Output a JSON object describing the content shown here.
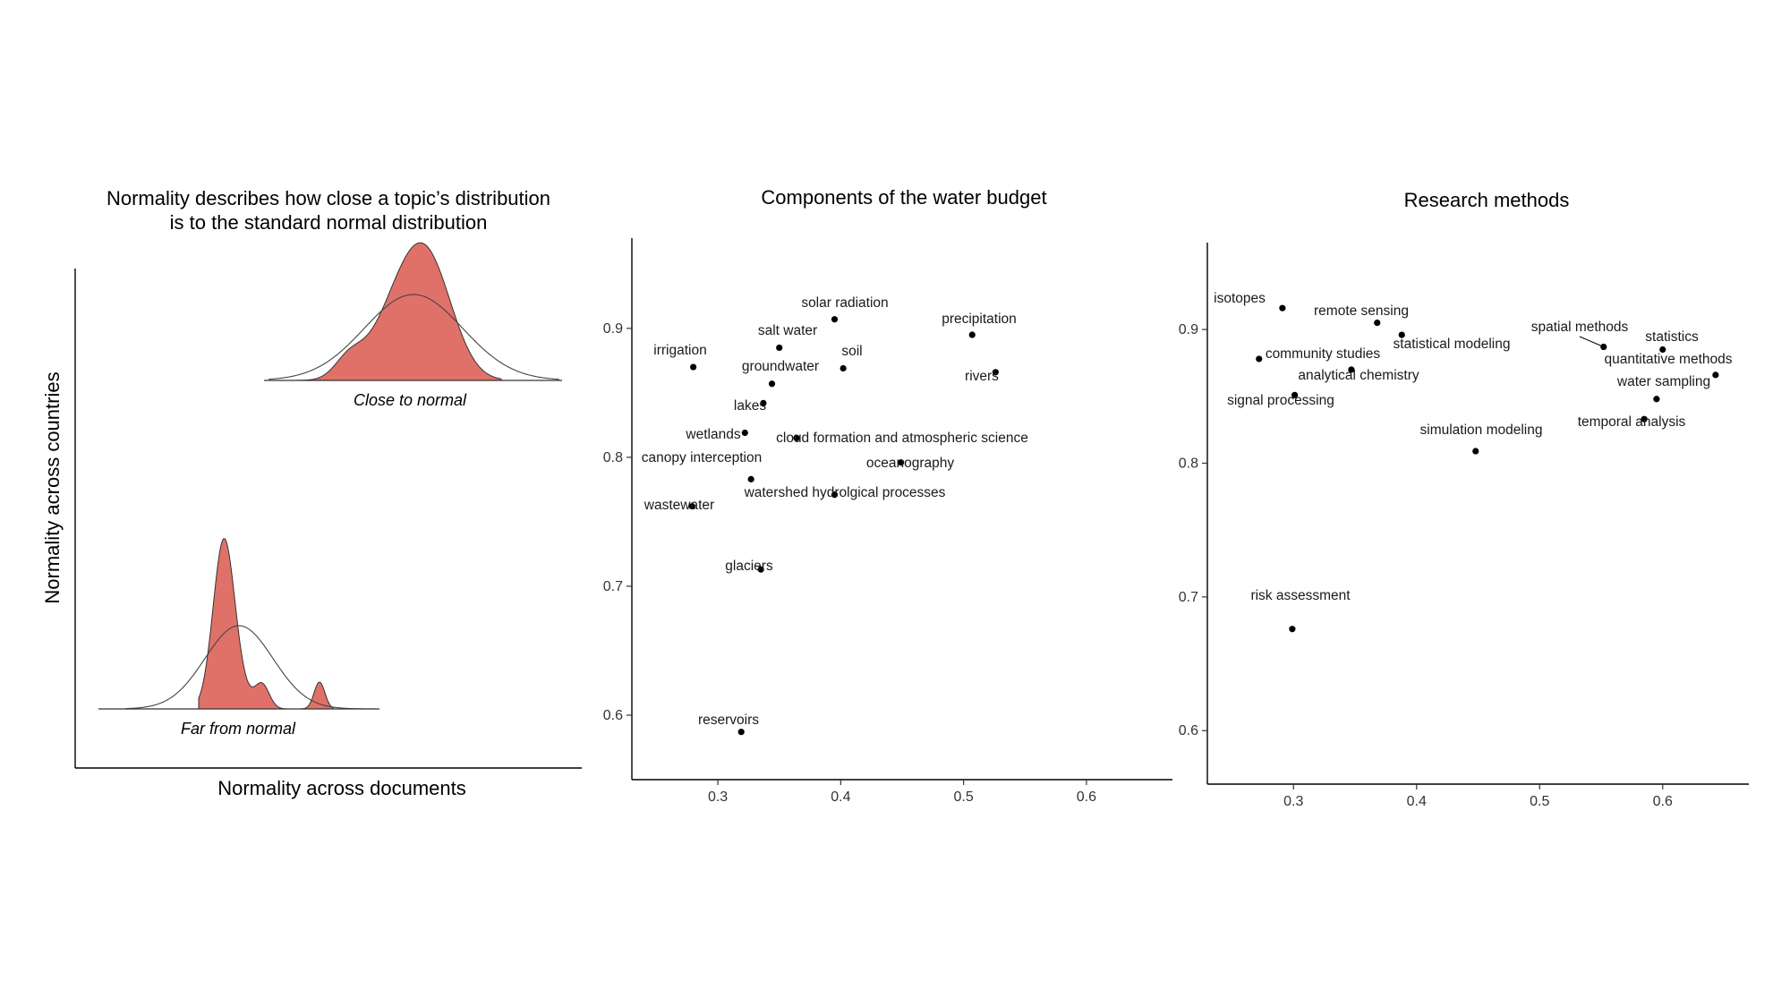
{
  "schematic": {
    "title_line1": "Normality describes how close a topic’s distribution",
    "title_line2": "is to the standard normal distribution",
    "xlabel": "Normality across documents",
    "ylabel": "Normality across countries",
    "close_label": "Close to normal",
    "far_label": "Far from normal",
    "fill_color": "#e07168"
  },
  "chart_data": [
    {
      "type": "scatter",
      "title": "Components of the water budget",
      "xlabel": "",
      "ylabel": "",
      "xlim": [
        0.23,
        0.67
      ],
      "ylim": [
        0.55,
        0.97
      ],
      "xticks": [
        "0.3",
        "0.4",
        "0.5",
        "0.6"
      ],
      "yticks": [
        "0.6",
        "0.7",
        "0.8",
        "0.9"
      ],
      "points": [
        {
          "label": "solar radiation",
          "x": 0.395,
          "y": 0.907
        },
        {
          "label": "precipitation",
          "x": 0.507,
          "y": 0.895
        },
        {
          "label": "salt water",
          "x": 0.35,
          "y": 0.885
        },
        {
          "label": "irrigation",
          "x": 0.28,
          "y": 0.87
        },
        {
          "label": "soil",
          "x": 0.402,
          "y": 0.869
        },
        {
          "label": "rivers",
          "x": 0.526,
          "y": 0.866
        },
        {
          "label": "groundwater",
          "x": 0.344,
          "y": 0.857
        },
        {
          "label": "lakes",
          "x": 0.337,
          "y": 0.842
        },
        {
          "label": "wetlands",
          "x": 0.322,
          "y": 0.819
        },
        {
          "label": "cloud formation and atmospheric science",
          "x": 0.364,
          "y": 0.815
        },
        {
          "label": "oceanography",
          "x": 0.449,
          "y": 0.796
        },
        {
          "label": "canopy interception",
          "x": 0.327,
          "y": 0.783
        },
        {
          "label": "watershed hydrolgical processes",
          "x": 0.395,
          "y": 0.771
        },
        {
          "label": "wastewater",
          "x": 0.279,
          "y": 0.762
        },
        {
          "label": "glaciers",
          "x": 0.335,
          "y": 0.713
        },
        {
          "label": "reservoirs",
          "x": 0.319,
          "y": 0.587
        }
      ]
    },
    {
      "type": "scatter",
      "title": "Research methods",
      "xlabel": "",
      "ylabel": "",
      "xlim": [
        0.23,
        0.67
      ],
      "ylim": [
        0.56,
        0.965
      ],
      "xticks": [
        "0.3",
        "0.4",
        "0.5",
        "0.6"
      ],
      "yticks": [
        "0.6",
        "0.7",
        "0.8",
        "0.9"
      ],
      "points": [
        {
          "label": "isotopes",
          "x": 0.291,
          "y": 0.916
        },
        {
          "label": "remote sensing",
          "x": 0.368,
          "y": 0.905
        },
        {
          "label": "statistical modeling",
          "x": 0.388,
          "y": 0.896
        },
        {
          "label": "spatial methods",
          "x": 0.552,
          "y": 0.887
        },
        {
          "label": "statistics",
          "x": 0.6,
          "y": 0.885
        },
        {
          "label": "community studies",
          "x": 0.272,
          "y": 0.878
        },
        {
          "label": "analytical chemistry",
          "x": 0.347,
          "y": 0.87
        },
        {
          "label": "quantitative methods",
          "x": 0.643,
          "y": 0.866
        },
        {
          "label": "signal processing",
          "x": 0.301,
          "y": 0.851
        },
        {
          "label": "water sampling",
          "x": 0.595,
          "y": 0.848
        },
        {
          "label": "temporal analysis",
          "x": 0.585,
          "y": 0.833
        },
        {
          "label": "simulation modeling",
          "x": 0.448,
          "y": 0.809
        },
        {
          "label": "risk assessment",
          "x": 0.299,
          "y": 0.676
        }
      ]
    }
  ]
}
